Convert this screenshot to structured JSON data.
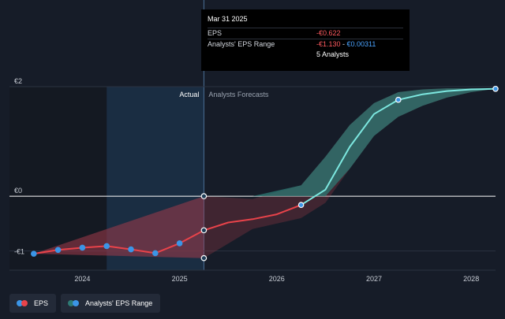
{
  "chart_data": {
    "type": "line",
    "y_tick_labels": [
      "€2",
      "€0",
      "-€1"
    ],
    "y_ticks": [
      2,
      0,
      -1
    ],
    "x_tick_labels": [
      "2024",
      "2025",
      "2026",
      "2027",
      "2028"
    ],
    "x_ticks": [
      2024,
      2025,
      2026,
      2027,
      2028
    ],
    "xlim": [
      2023.25,
      2028.25
    ],
    "ylim": [
      -1.35,
      2.0
    ],
    "region_labels": {
      "actual": "Actual",
      "forecast": "Analysts Forecasts"
    },
    "actual_end": 2025.25,
    "eps_actual": {
      "name": "EPS",
      "x": [
        2023.5,
        2023.75,
        2024.0,
        2024.25,
        2024.5,
        2024.75,
        2025.0,
        2025.25
      ],
      "y": [
        -1.05,
        -0.98,
        -0.94,
        -0.91,
        -0.97,
        -1.04,
        -0.86,
        -0.622
      ]
    },
    "eps_forecast": {
      "x": [
        2025.25,
        2025.5,
        2025.75,
        2026.0,
        2026.25,
        2026.5,
        2026.75,
        2027.0,
        2027.25,
        2027.5,
        2027.75,
        2028.0,
        2028.25
      ],
      "y": [
        -0.622,
        -0.48,
        -0.42,
        -0.33,
        -0.16,
        0.12,
        0.9,
        1.5,
        1.76,
        1.86,
        1.92,
        1.95,
        1.96
      ],
      "markers_x": [
        2026.25,
        2027.25,
        2028.25
      ]
    },
    "range_actual": {
      "x": [
        2023.5,
        2025.25
      ],
      "high": [
        -1.05,
        0.0
      ],
      "low": [
        -1.05,
        -1.13
      ]
    },
    "range_forecast": {
      "x": [
        2025.25,
        2025.75,
        2026.25,
        2026.5,
        2026.75,
        2027.0,
        2027.25,
        2027.5,
        2027.75,
        2028.0,
        2028.25
      ],
      "high": [
        0.0,
        -0.05,
        0.2,
        0.72,
        1.3,
        1.7,
        1.9,
        1.95,
        1.97,
        1.97,
        1.96
      ],
      "low": [
        -1.13,
        -0.6,
        -0.4,
        -0.12,
        0.5,
        1.1,
        1.45,
        1.65,
        1.8,
        1.9,
        1.96
      ]
    },
    "range_markers": [
      {
        "x": 2025.25,
        "y": 0.0
      },
      {
        "x": 2025.25,
        "y": -1.13
      }
    ],
    "colors": {
      "eps_line": "#e8434a",
      "forecast_line": "#7de8e0",
      "point": "#3b95e6",
      "range_actual": "#a33a4a",
      "range_forecast": "#2e7a74",
      "highlight": "#1f3d57",
      "zero_line": "#ffffff",
      "grid": "#2b3240"
    },
    "grid": true
  },
  "tooltip": {
    "date": "Mar 31 2025",
    "eps_label": "EPS",
    "eps_value": "-€0.622",
    "range_label": "Analysts' EPS Range",
    "range_low": "-€1.130",
    "range_sep": " - ",
    "range_high": "€0.00311",
    "analysts": "5 Analysts"
  },
  "legend": {
    "eps_label": "EPS",
    "range_label": "Analysts' EPS Range",
    "eps_colors": [
      "#3b95e6",
      "#e8434a"
    ],
    "range_colors": [
      "#2e7a74",
      "#3b95e6"
    ]
  }
}
